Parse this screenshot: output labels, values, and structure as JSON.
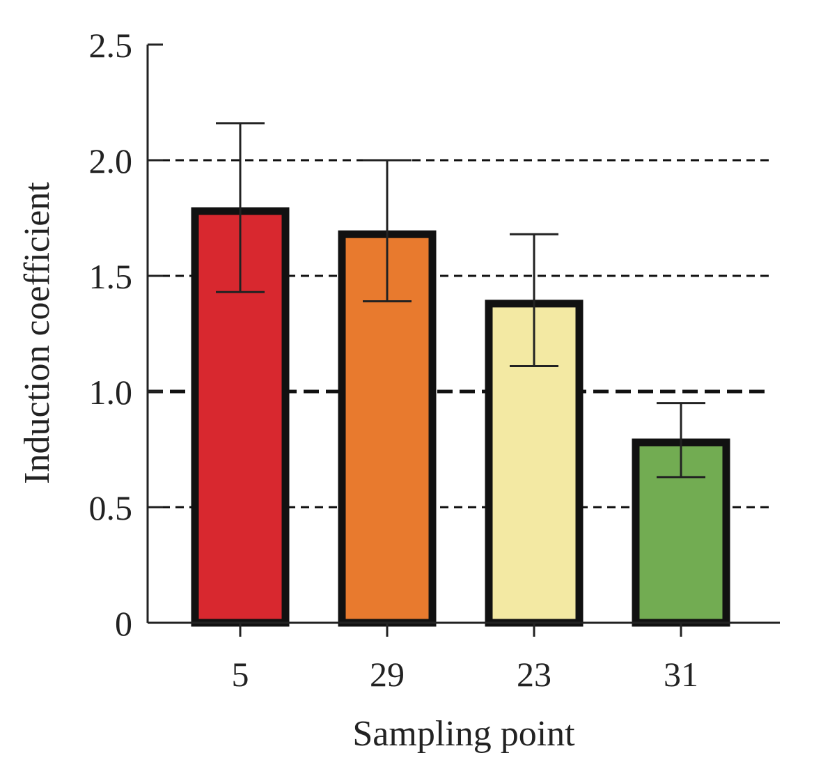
{
  "chart_data": {
    "type": "bar",
    "title": "",
    "xlabel": "Sampling point",
    "ylabel": "Induction coefficient",
    "categories": [
      "5",
      "29",
      "23",
      "31"
    ],
    "values": [
      1.78,
      1.68,
      1.38,
      0.78
    ],
    "error_upper": [
      2.16,
      2.0,
      1.68,
      0.95
    ],
    "error_lower": [
      1.43,
      1.39,
      1.11,
      0.63
    ],
    "colors": [
      "#d8282f",
      "#e87a2e",
      "#f3e9a3",
      "#72ac52"
    ],
    "ylim": [
      0,
      2.5
    ],
    "yticks": [
      0,
      0.5,
      1.0,
      1.5,
      2.0,
      2.5
    ],
    "ytick_labels": [
      "0",
      "0.5",
      "1.0",
      "1.5",
      "2.0",
      "2.5"
    ],
    "reference_lines": [
      0.5,
      1.0,
      1.5,
      2.0
    ],
    "grid": "dashed horizontal",
    "legend": "none"
  }
}
